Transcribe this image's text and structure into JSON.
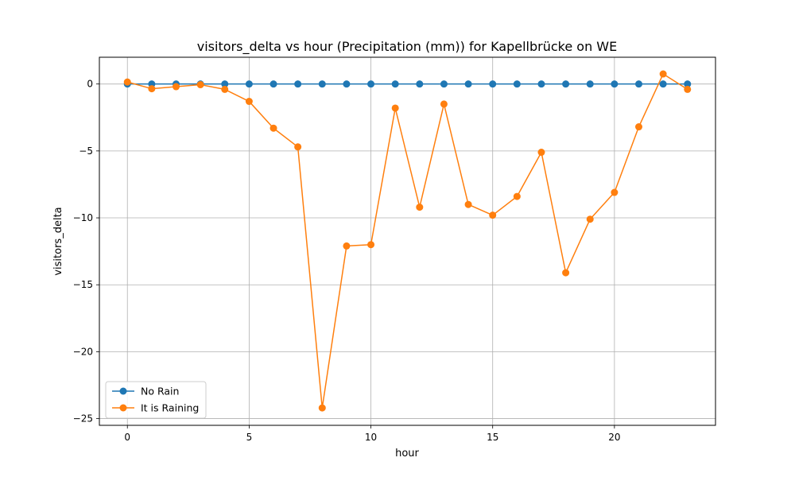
{
  "chart_data": {
    "type": "line",
    "title": "visitors_delta vs hour (Precipitation (mm)) for Kapellbrücke on WE",
    "xlabel": "hour",
    "ylabel": "visitors_delta",
    "xlim": [
      -1.15,
      24.15
    ],
    "ylim": [
      -25.5,
      2.0
    ],
    "x_ticks": [
      0,
      5,
      10,
      15,
      20
    ],
    "y_ticks": [
      0,
      -5,
      -10,
      -15,
      -20,
      -25
    ],
    "y_tick_labels": [
      "0",
      "−5",
      "−10",
      "−15",
      "−20",
      "−25"
    ],
    "grid": true,
    "legend_position": "lower-left",
    "x": [
      0,
      1,
      2,
      3,
      4,
      5,
      6,
      7,
      8,
      9,
      10,
      11,
      12,
      13,
      14,
      15,
      16,
      17,
      18,
      19,
      20,
      21,
      22,
      23
    ],
    "series": [
      {
        "name": "No Rain",
        "color": "#1f77b4",
        "values": [
          0,
          0,
          0,
          0,
          0,
          0,
          0,
          0,
          0,
          0,
          0,
          0,
          0,
          0,
          0,
          0,
          0,
          0,
          0,
          0,
          0,
          0,
          0,
          0
        ]
      },
      {
        "name": "It is Raining",
        "color": "#ff7f0e",
        "values": [
          0.15,
          -0.35,
          -0.2,
          -0.05,
          -0.4,
          -1.3,
          -3.3,
          -4.7,
          -24.2,
          -12.1,
          -12.0,
          -1.8,
          -9.2,
          -1.5,
          -9.0,
          -9.8,
          -8.4,
          -5.1,
          -14.1,
          -10.1,
          -8.1,
          -3.2,
          0.75,
          -0.4
        ]
      }
    ]
  }
}
